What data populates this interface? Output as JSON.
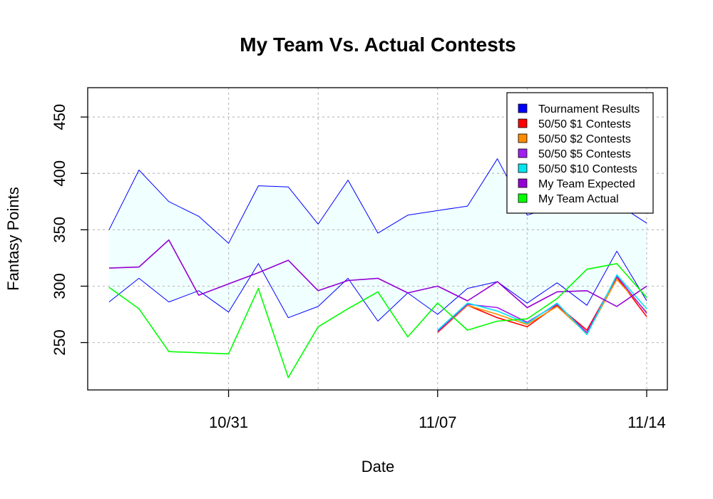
{
  "chart_data": {
    "type": "line",
    "title": "My Team Vs. Actual Contests",
    "xlabel": "Date",
    "ylabel": "Fantasy Points",
    "x": [
      "10/27",
      "10/28",
      "10/29",
      "10/30",
      "10/31",
      "11/01",
      "11/02",
      "11/03",
      "11/04",
      "11/05",
      "11/06",
      "11/07",
      "11/08",
      "11/09",
      "11/10",
      "11/11",
      "11/12",
      "11/13",
      "11/14"
    ],
    "x_ticks": [
      "10/31",
      "11/07",
      "11/14"
    ],
    "y_ticks": [
      250,
      300,
      350,
      400,
      450
    ],
    "ylim": [
      208,
      476
    ],
    "grid": true,
    "legend_position": "top-right",
    "tournament_band": {
      "name": "Tournament Results",
      "color": "#0000ff",
      "fill": "#f0ffff",
      "upper": [
        350,
        403,
        375,
        362,
        338,
        389,
        388,
        355,
        394,
        347,
        363,
        367,
        371,
        413,
        363,
        371,
        388,
        373,
        356
      ],
      "lower": [
        286,
        307,
        286,
        296,
        277,
        320,
        272,
        282,
        307,
        269,
        294,
        275,
        298,
        304,
        285,
        303,
        283,
        331,
        287
      ]
    },
    "series": [
      {
        "name": "50/50 $1 Contests",
        "color": "#ff0000",
        "values": [
          null,
          null,
          null,
          null,
          null,
          null,
          null,
          null,
          null,
          null,
          null,
          259,
          283,
          272,
          264,
          283,
          261,
          308,
          273
        ]
      },
      {
        "name": "50/50 $2 Contests",
        "color": "#ff8c00",
        "values": [
          null,
          null,
          null,
          null,
          null,
          null,
          null,
          null,
          null,
          null,
          null,
          260,
          283,
          275,
          266,
          282,
          258,
          306,
          277
        ]
      },
      {
        "name": "50/50 $5 Contests",
        "color": "#a020f0",
        "values": [
          null,
          null,
          null,
          null,
          null,
          null,
          null,
          null,
          null,
          null,
          null,
          260,
          284,
          281,
          268,
          284,
          259,
          309,
          276
        ]
      },
      {
        "name": "50/50 $10 Contests",
        "color": "#00e5ee",
        "values": [
          null,
          null,
          null,
          null,
          null,
          null,
          null,
          null,
          null,
          null,
          null,
          261,
          285,
          278,
          267,
          285,
          257,
          310,
          280
        ]
      },
      {
        "name": "My Team Expected",
        "color": "#9400d3",
        "values": [
          316,
          317,
          341,
          292,
          302,
          312,
          323,
          296,
          305,
          307,
          294,
          300,
          287,
          304,
          281,
          295,
          296,
          282,
          300
        ]
      },
      {
        "name": "My Team Actual",
        "color": "#00ff00",
        "values": [
          299,
          280,
          242,
          241,
          240,
          298,
          219,
          264,
          280,
          295,
          255,
          285,
          261,
          269,
          271,
          289,
          315,
          320,
          290
        ]
      }
    ],
    "legend": [
      {
        "label": "Tournament Results",
        "color": "#0000ff"
      },
      {
        "label": "50/50 $1 Contests",
        "color": "#ff0000"
      },
      {
        "label": "50/50 $2 Contests",
        "color": "#ff8c00"
      },
      {
        "label": "50/50 $5 Contests",
        "color": "#a020f0"
      },
      {
        "label": "50/50 $10 Contests",
        "color": "#00e5ee"
      },
      {
        "label": "My Team Expected",
        "color": "#9400d3"
      },
      {
        "label": "My Team Actual",
        "color": "#00ff00"
      }
    ]
  }
}
